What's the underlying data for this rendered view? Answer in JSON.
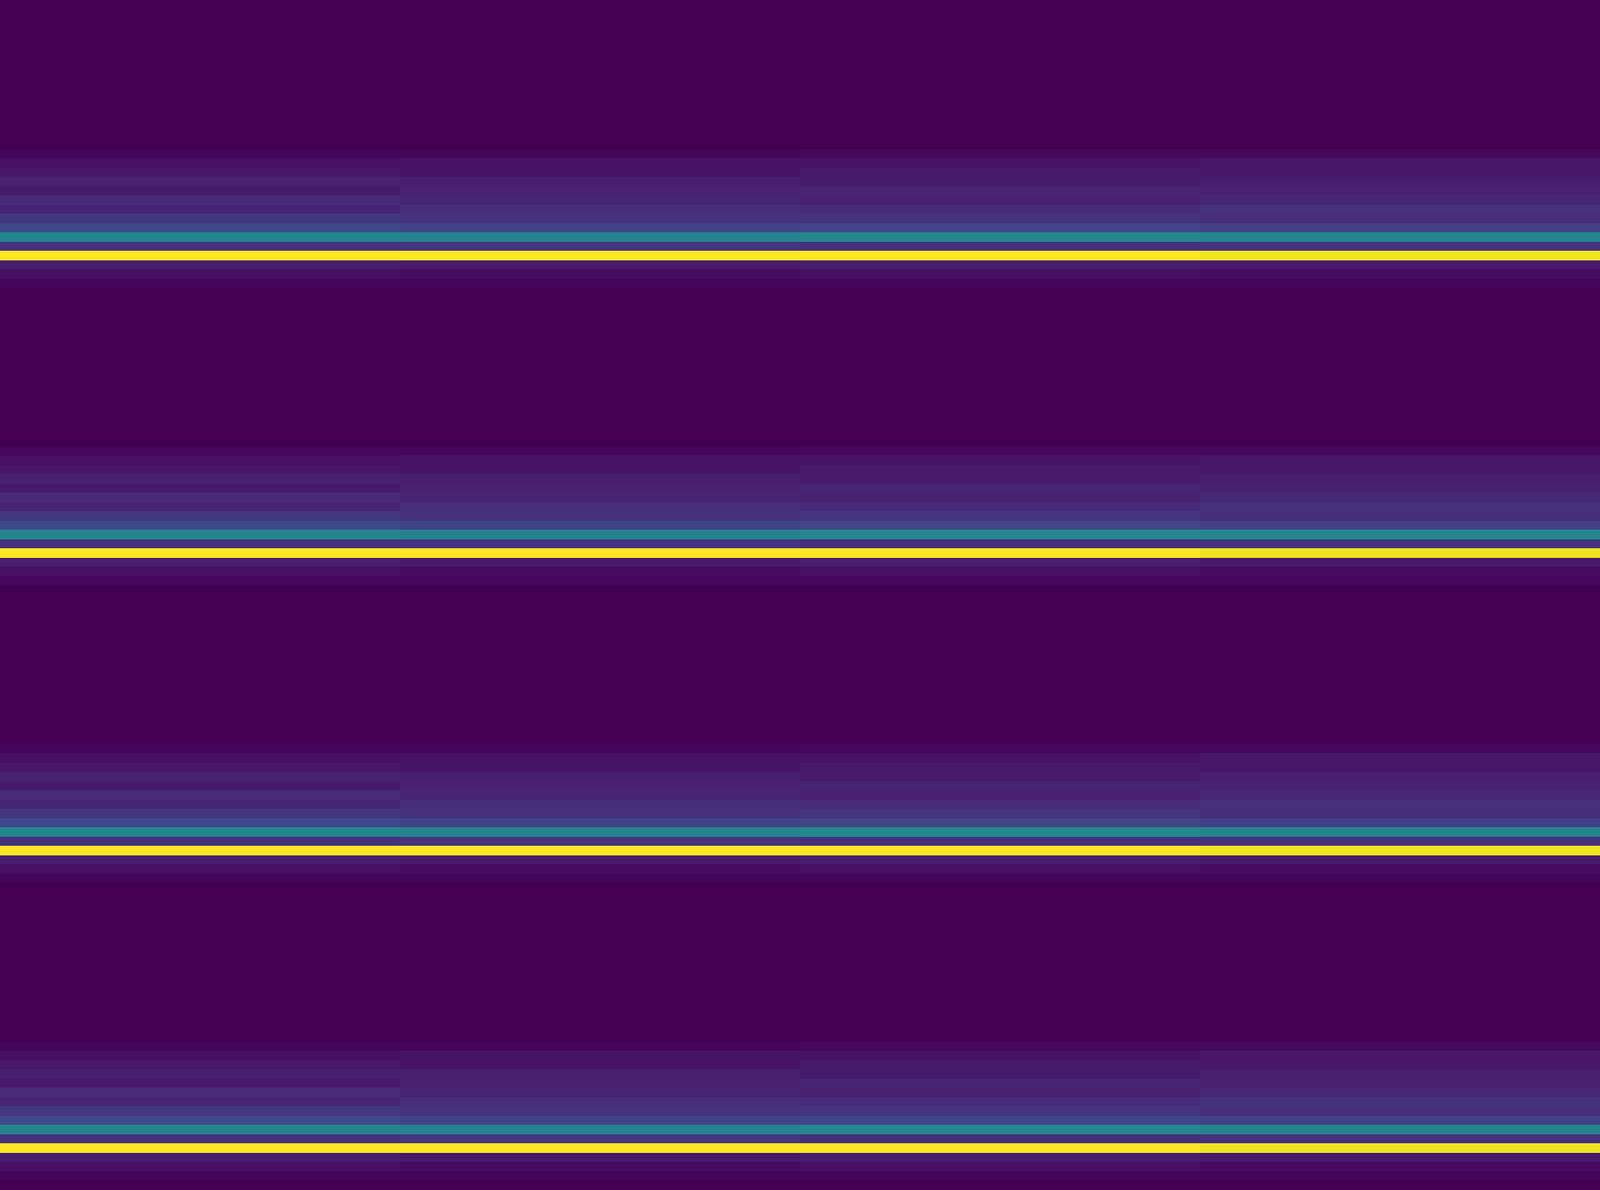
{
  "chart_data": {
    "type": "heatmap",
    "color": "Viridis",
    "tick_labels": false,
    "xlim": [
      -0.5,
      3.5
    ],
    "ylim": [
      127.5,
      -0.5
    ],
    "zlim": [
      0,
      1
    ],
    "z": [
      [
        0,
        0,
        0,
        0
      ],
      [
        0,
        0,
        0,
        0
      ],
      [
        0,
        0,
        0,
        0
      ],
      [
        0,
        0,
        0,
        0
      ],
      [
        0,
        0,
        0,
        0
      ],
      [
        0,
        0,
        0,
        0
      ],
      [
        0,
        0,
        0,
        0
      ],
      [
        0,
        0,
        0,
        0
      ],
      [
        0,
        0,
        0,
        0
      ],
      [
        0,
        0,
        0,
        0
      ],
      [
        0,
        0,
        0,
        0
      ],
      [
        0,
        0,
        0,
        0
      ],
      [
        0,
        0,
        0,
        0
      ],
      [
        0,
        0,
        0,
        0
      ],
      [
        0,
        0,
        0,
        0
      ],
      [
        0,
        0,
        0,
        0
      ],
      [
        0.01,
        0.01,
        0.02,
        0.02
      ],
      [
        0.04,
        0.05,
        0.05,
        0.06
      ],
      [
        0.06,
        0.05,
        0.07,
        0.06
      ],
      [
        0.09,
        0.08,
        0.07,
        0.08
      ],
      [
        0.07,
        0.09,
        0.1,
        0.09
      ],
      [
        0.12,
        0.1,
        0.09,
        0.11
      ],
      [
        0.1,
        0.13,
        0.12,
        0.14
      ],
      [
        0.16,
        0.14,
        0.15,
        0.13
      ],
      [
        0.22,
        0.2,
        0.21,
        0.19
      ],
      [
        0.45,
        0.44,
        0.46,
        0.45
      ],
      [
        0.14,
        0.15,
        0.13,
        0.14
      ],
      [
        1,
        1,
        1,
        0.98
      ],
      [
        0.08,
        0.07,
        0.08,
        0.07
      ],
      [
        0.04,
        0.03,
        0.04,
        0.03
      ],
      [
        0.01,
        0.01,
        0.01,
        0.01
      ],
      [
        0,
        0,
        0,
        0
      ],
      [
        0,
        0,
        0,
        0
      ],
      [
        0,
        0,
        0,
        0
      ],
      [
        0,
        0,
        0,
        0
      ],
      [
        0,
        0,
        0,
        0
      ],
      [
        0,
        0,
        0,
        0
      ],
      [
        0,
        0,
        0,
        0
      ],
      [
        0,
        0,
        0,
        0
      ],
      [
        0,
        0,
        0,
        0
      ],
      [
        0,
        0,
        0,
        0
      ],
      [
        0,
        0,
        0,
        0
      ],
      [
        0,
        0,
        0,
        0
      ],
      [
        0,
        0,
        0,
        0
      ],
      [
        0,
        0,
        0,
        0
      ],
      [
        0,
        0,
        0,
        0
      ],
      [
        0,
        0,
        0,
        0
      ],
      [
        0,
        0,
        0,
        0
      ],
      [
        0.01,
        0.01,
        0.02,
        0.02
      ],
      [
        0.04,
        0.05,
        0.05,
        0.06
      ],
      [
        0.06,
        0.05,
        0.07,
        0.06
      ],
      [
        0.09,
        0.08,
        0.07,
        0.08
      ],
      [
        0.07,
        0.09,
        0.1,
        0.09
      ],
      [
        0.12,
        0.1,
        0.09,
        0.11
      ],
      [
        0.1,
        0.13,
        0.12,
        0.14
      ],
      [
        0.16,
        0.14,
        0.15,
        0.13
      ],
      [
        0.22,
        0.2,
        0.21,
        0.19
      ],
      [
        0.45,
        0.44,
        0.46,
        0.45
      ],
      [
        0.14,
        0.15,
        0.13,
        0.14
      ],
      [
        1,
        1,
        1,
        0.98
      ],
      [
        0.08,
        0.07,
        0.08,
        0.07
      ],
      [
        0.04,
        0.03,
        0.04,
        0.03
      ],
      [
        0.01,
        0.01,
        0.01,
        0.01
      ],
      [
        0,
        0,
        0,
        0
      ],
      [
        0,
        0,
        0,
        0
      ],
      [
        0,
        0,
        0,
        0
      ],
      [
        0,
        0,
        0,
        0
      ],
      [
        0,
        0,
        0,
        0
      ],
      [
        0,
        0,
        0,
        0
      ],
      [
        0,
        0,
        0,
        0
      ],
      [
        0,
        0,
        0,
        0
      ],
      [
        0,
        0,
        0,
        0
      ],
      [
        0,
        0,
        0,
        0
      ],
      [
        0,
        0,
        0,
        0
      ],
      [
        0,
        0,
        0,
        0
      ],
      [
        0,
        0,
        0,
        0
      ],
      [
        0,
        0,
        0,
        0
      ],
      [
        0,
        0,
        0,
        0
      ],
      [
        0,
        0,
        0,
        0
      ],
      [
        0,
        0,
        0,
        0
      ],
      [
        0.01,
        0.01,
        0.02,
        0.02
      ],
      [
        0.04,
        0.05,
        0.05,
        0.06
      ],
      [
        0.06,
        0.05,
        0.07,
        0.06
      ],
      [
        0.09,
        0.08,
        0.07,
        0.08
      ],
      [
        0.07,
        0.09,
        0.1,
        0.09
      ],
      [
        0.12,
        0.1,
        0.09,
        0.11
      ],
      [
        0.1,
        0.13,
        0.12,
        0.14
      ],
      [
        0.16,
        0.14,
        0.15,
        0.13
      ],
      [
        0.22,
        0.2,
        0.21,
        0.19
      ],
      [
        0.45,
        0.44,
        0.46,
        0.45
      ],
      [
        0.14,
        0.15,
        0.13,
        0.14
      ],
      [
        1,
        1,
        1,
        0.98
      ],
      [
        0.08,
        0.07,
        0.08,
        0.07
      ],
      [
        0.04,
        0.03,
        0.04,
        0.03
      ],
      [
        0.01,
        0.01,
        0.01,
        0.01
      ],
      [
        0,
        0,
        0,
        0
      ],
      [
        0,
        0,
        0,
        0
      ],
      [
        0,
        0,
        0,
        0
      ],
      [
        0,
        0,
        0,
        0
      ],
      [
        0,
        0,
        0,
        0
      ],
      [
        0,
        0,
        0,
        0
      ],
      [
        0,
        0,
        0,
        0
      ],
      [
        0,
        0,
        0,
        0
      ],
      [
        0,
        0,
        0,
        0
      ],
      [
        0,
        0,
        0,
        0
      ],
      [
        0,
        0,
        0,
        0
      ],
      [
        0,
        0,
        0,
        0
      ],
      [
        0,
        0,
        0,
        0
      ],
      [
        0,
        0,
        0,
        0
      ],
      [
        0,
        0,
        0,
        0
      ],
      [
        0,
        0,
        0,
        0
      ],
      [
        0,
        0,
        0,
        0
      ],
      [
        0.01,
        0.01,
        0.02,
        0.02
      ],
      [
        0.04,
        0.05,
        0.05,
        0.06
      ],
      [
        0.06,
        0.05,
        0.07,
        0.06
      ],
      [
        0.09,
        0.08,
        0.07,
        0.08
      ],
      [
        0.07,
        0.09,
        0.1,
        0.09
      ],
      [
        0.12,
        0.1,
        0.09,
        0.11
      ],
      [
        0.1,
        0.13,
        0.12,
        0.14
      ],
      [
        0.16,
        0.14,
        0.15,
        0.13
      ],
      [
        0.22,
        0.2,
        0.21,
        0.19
      ],
      [
        0.45,
        0.44,
        0.46,
        0.45
      ],
      [
        0.14,
        0.15,
        0.13,
        0.14
      ],
      [
        1,
        1,
        1,
        0.98
      ],
      [
        0.08,
        0.07,
        0.08,
        0.07
      ],
      [
        0.04,
        0.03,
        0.04,
        0.03
      ],
      [
        0.01,
        0.01,
        0.01,
        0.01
      ],
      [
        0,
        0,
        0,
        0
      ]
    ]
  }
}
